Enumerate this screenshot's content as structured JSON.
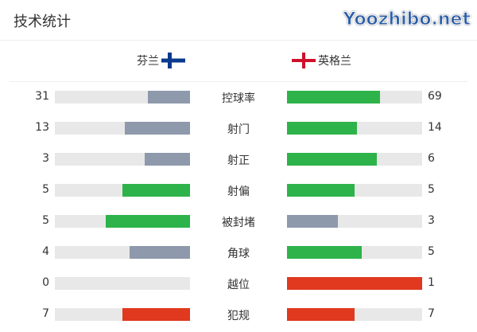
{
  "title": "技术统计",
  "home": {
    "name": "芬兰",
    "flag": "finland-flag"
  },
  "away": {
    "name": "英格兰",
    "flag": "england-flag"
  },
  "colors": {
    "gray": "#8e99ab",
    "green": "#2db34a",
    "red": "#e0391f",
    "track": "#e8e8e8"
  },
  "stats": [
    {
      "label": "控球率",
      "home": 31,
      "away": 69,
      "home_color": "#8e99ab",
      "away_color": "#2db34a"
    },
    {
      "label": "射门",
      "home": 13,
      "away": 14,
      "home_color": "#8e99ab",
      "away_color": "#2db34a"
    },
    {
      "label": "射正",
      "home": 3,
      "away": 6,
      "home_color": "#8e99ab",
      "away_color": "#2db34a"
    },
    {
      "label": "射偏",
      "home": 5,
      "away": 5,
      "home_color": "#2db34a",
      "away_color": "#2db34a"
    },
    {
      "label": "被封堵",
      "home": 5,
      "away": 3,
      "home_color": "#2db34a",
      "away_color": "#8e99ab"
    },
    {
      "label": "角球",
      "home": 4,
      "away": 5,
      "home_color": "#8e99ab",
      "away_color": "#2db34a"
    },
    {
      "label": "越位",
      "home": 0,
      "away": 1,
      "home_color": "#e0391f",
      "away_color": "#e0391f"
    },
    {
      "label": "犯规",
      "home": 7,
      "away": 7,
      "home_color": "#e0391f",
      "away_color": "#e0391f"
    }
  ],
  "watermark": "Yoozhibo.net"
}
